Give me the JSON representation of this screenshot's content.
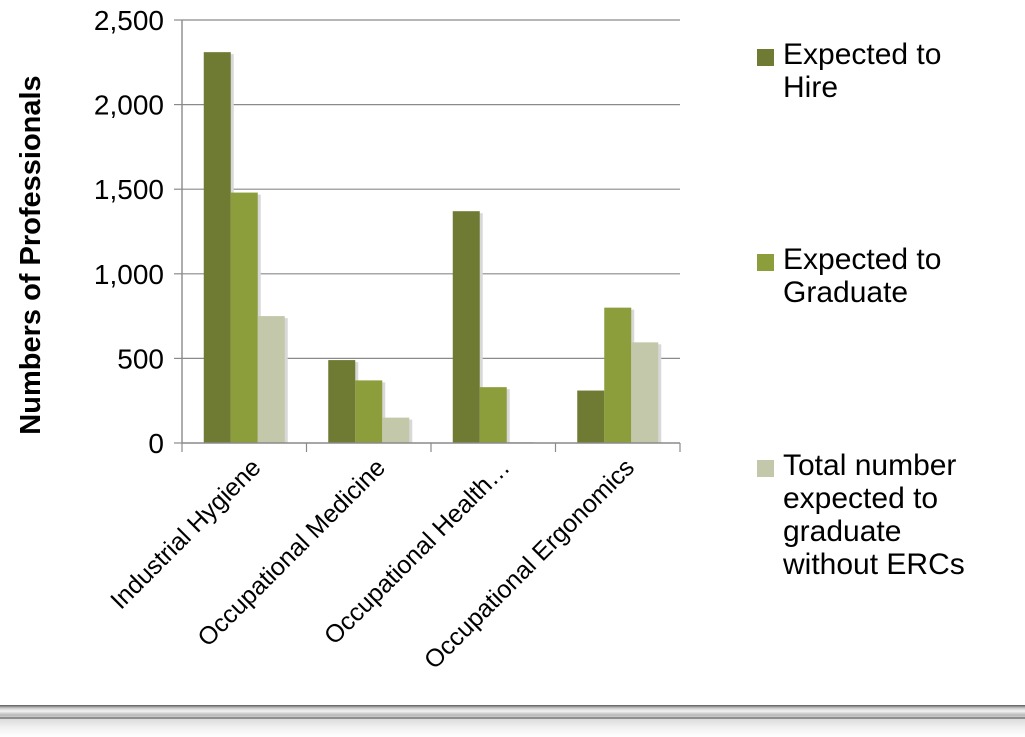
{
  "chart_data": {
    "type": "bar",
    "ylabel": "Numbers of Professionals",
    "ylim": [
      0,
      2500
    ],
    "yticks": [
      0,
      500,
      1000,
      1500,
      2000,
      2500
    ],
    "ytick_labels": [
      "0",
      "500",
      "1,000",
      "1,500",
      "2,000",
      "2,500"
    ],
    "categories": [
      "Industrial Hygiene",
      "Occupational Medicine",
      "Occupational Health…",
      "Occupational Ergonomics"
    ],
    "series": [
      {
        "name": "Expected to Hire",
        "color": "#6f7a32",
        "values": [
          2310,
          490,
          1370,
          310
        ]
      },
      {
        "name": "Expected to Graduate",
        "color": "#8c9d3c",
        "values": [
          1480,
          370,
          330,
          800
        ]
      },
      {
        "name": "Total number expected to graduate without ERCs",
        "color": "#c3c8aa",
        "values": [
          750,
          150,
          5,
          595
        ]
      }
    ],
    "grid": true,
    "legend_position": "right"
  },
  "legend": {
    "items": [
      {
        "label": "Expected to\nHire"
      },
      {
        "label": "Expected to\nGraduate"
      },
      {
        "label": "Total number\nexpected to\ngraduate\nwithout ERCs"
      }
    ]
  }
}
